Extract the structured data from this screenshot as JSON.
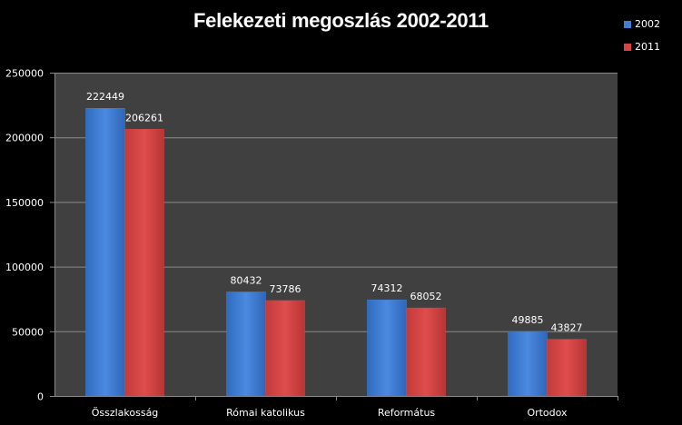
{
  "chart_data": {
    "type": "bar",
    "title": "Felekezeti megoszlás 2002-2011",
    "categories": [
      "Összlakosság",
      "Római katolikus",
      "Református",
      "Ortodox"
    ],
    "series": [
      {
        "name": "2002",
        "color": "#3f7fd6",
        "values": [
          222449,
          80432,
          74312,
          49885
        ]
      },
      {
        "name": "2011",
        "color": "#d64545",
        "values": [
          206261,
          73786,
          68052,
          43827
        ]
      }
    ],
    "ylim": [
      0,
      250000
    ],
    "yticks": [
      0,
      50000,
      100000,
      150000,
      200000,
      250000
    ],
    "xlabel": "",
    "ylabel": "",
    "grid": true,
    "legend": "top-right"
  }
}
